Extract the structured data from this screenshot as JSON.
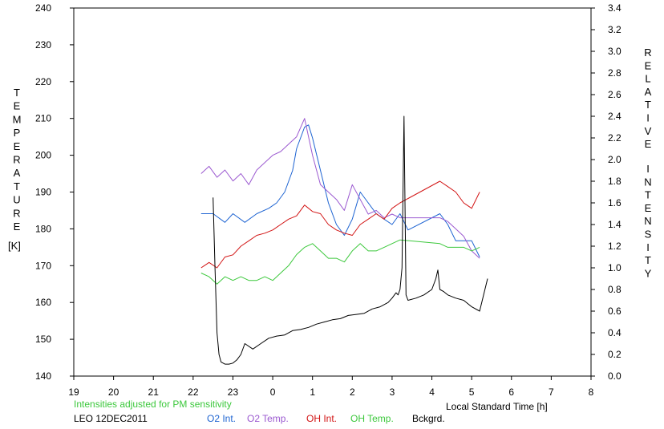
{
  "chart_data": {
    "type": "line",
    "x_axis": {
      "label": "Local Standard Time [h]",
      "range": [
        19,
        32
      ],
      "tick_labels": [
        "19",
        "20",
        "21",
        "22",
        "23",
        "0",
        "1",
        "2",
        "3",
        "4",
        "5",
        "6",
        "7",
        "8"
      ]
    },
    "y_left": {
      "label_letters": [
        "T",
        "E",
        "M",
        "P",
        "E",
        "R",
        "A",
        "T",
        "U",
        "R",
        "E"
      ],
      "unit": "[K]",
      "range": [
        140,
        240
      ],
      "ticks": [
        "140",
        "150",
        "160",
        "170",
        "180",
        "190",
        "200",
        "210",
        "220",
        "230",
        "240"
      ]
    },
    "y_right": {
      "label_word1": [
        "R",
        "E",
        "L",
        "A",
        "T",
        "I",
        "V",
        "E"
      ],
      "label_word2": [
        "I",
        "N",
        "T",
        "E",
        "N",
        "S",
        "I",
        "T",
        "Y"
      ],
      "range": [
        0.0,
        3.4
      ],
      "ticks": [
        "0.0",
        "0.2",
        "0.4",
        "0.6",
        "0.8",
        "1.0",
        "1.2",
        "1.4",
        "1.6",
        "1.8",
        "2.0",
        "2.2",
        "2.4",
        "2.6",
        "2.8",
        "3.0",
        "3.2",
        "3.4"
      ]
    },
    "note": "Intensities adjusted for PM sensitivity",
    "station": "LEO 12DEC2011",
    "series": [
      {
        "name": "O2 Int.",
        "axis": "right",
        "color": "#1e64d2",
        "x": [
          22.2,
          22.5,
          22.8,
          23.0,
          23.3,
          23.6,
          23.9,
          24.1,
          24.3,
          24.5,
          24.6,
          24.8,
          24.9,
          25.0,
          25.2,
          25.4,
          25.6,
          25.8,
          26.0,
          26.2,
          26.4,
          26.6,
          26.8,
          27.0,
          27.2,
          27.4,
          28.2,
          28.4,
          28.6,
          28.8,
          29.0,
          29.2
        ],
        "y": [
          1.5,
          1.5,
          1.42,
          1.5,
          1.42,
          1.5,
          1.55,
          1.6,
          1.7,
          1.9,
          2.1,
          2.3,
          2.32,
          2.2,
          1.9,
          1.6,
          1.4,
          1.3,
          1.45,
          1.7,
          1.6,
          1.5,
          1.45,
          1.4,
          1.5,
          1.35,
          1.5,
          1.4,
          1.25,
          1.25,
          1.25,
          1.1
        ]
      },
      {
        "name": "O2 Temp.",
        "axis": "left",
        "color": "#9b59d0",
        "x": [
          22.2,
          22.4,
          22.6,
          22.8,
          23.0,
          23.2,
          23.4,
          23.6,
          23.8,
          24.0,
          24.2,
          24.4,
          24.6,
          24.8,
          25.0,
          25.2,
          25.4,
          25.6,
          25.8,
          26.0,
          26.2,
          26.4,
          26.6,
          26.8,
          27.0,
          27.2,
          28.2,
          28.4,
          28.6,
          28.8,
          29.0,
          29.2
        ],
        "y": [
          195,
          197,
          194,
          196,
          193,
          195,
          192,
          196,
          198,
          200,
          201,
          203,
          205,
          210,
          200,
          192,
          190,
          188,
          185,
          192,
          188,
          184,
          185,
          183,
          184,
          183,
          183,
          182,
          180,
          178,
          174,
          172
        ]
      },
      {
        "name": "OH Int.",
        "axis": "right",
        "color": "#d21414",
        "x": [
          22.2,
          22.4,
          22.6,
          22.8,
          23.0,
          23.2,
          23.4,
          23.6,
          23.8,
          24.0,
          24.2,
          24.4,
          24.6,
          24.8,
          25.0,
          25.2,
          25.4,
          25.6,
          25.8,
          26.0,
          26.2,
          26.4,
          26.6,
          26.8,
          27.0,
          27.2,
          28.2,
          28.4,
          28.6,
          28.8,
          29.0,
          29.2
        ],
        "y": [
          1.0,
          1.05,
          1.0,
          1.1,
          1.12,
          1.2,
          1.25,
          1.3,
          1.32,
          1.35,
          1.4,
          1.45,
          1.48,
          1.58,
          1.52,
          1.5,
          1.4,
          1.35,
          1.32,
          1.3,
          1.4,
          1.45,
          1.5,
          1.45,
          1.55,
          1.6,
          1.8,
          1.75,
          1.7,
          1.6,
          1.55,
          1.7
        ]
      },
      {
        "name": "OH Temp.",
        "axis": "left",
        "color": "#3cc83c",
        "x": [
          22.2,
          22.4,
          22.6,
          22.8,
          23.0,
          23.2,
          23.4,
          23.6,
          23.8,
          24.0,
          24.2,
          24.4,
          24.6,
          24.8,
          25.0,
          25.2,
          25.4,
          25.6,
          25.8,
          26.0,
          26.2,
          26.4,
          26.6,
          26.8,
          27.0,
          27.2,
          28.2,
          28.4,
          28.6,
          28.8,
          29.0,
          29.2
        ],
        "y": [
          168,
          167,
          165,
          167,
          166,
          167,
          166,
          166,
          167,
          166,
          168,
          170,
          173,
          175,
          176,
          174,
          172,
          172,
          171,
          174,
          176,
          174,
          174,
          175,
          176,
          177,
          176,
          175,
          175,
          175,
          174,
          175
        ]
      },
      {
        "name": "Bckgrd.",
        "axis": "right",
        "color": "#000000",
        "x": [
          22.5,
          22.55,
          22.6,
          22.65,
          22.7,
          22.8,
          22.9,
          23.0,
          23.1,
          23.2,
          23.3,
          23.5,
          23.7,
          23.9,
          24.1,
          24.3,
          24.5,
          24.7,
          24.9,
          25.1,
          25.3,
          25.5,
          25.7,
          25.9,
          26.1,
          26.3,
          26.5,
          26.7,
          26.9,
          27.0,
          27.1,
          27.15,
          27.2,
          27.25,
          27.3,
          27.35,
          27.4,
          27.6,
          27.8,
          28.0,
          28.1,
          28.15,
          28.2,
          28.3,
          28.4,
          28.6,
          28.8,
          29.0,
          29.2,
          29.4
        ],
        "y": [
          1.65,
          1.0,
          0.4,
          0.2,
          0.13,
          0.11,
          0.11,
          0.12,
          0.15,
          0.2,
          0.3,
          0.25,
          0.3,
          0.35,
          0.37,
          0.38,
          0.42,
          0.43,
          0.45,
          0.48,
          0.5,
          0.52,
          0.53,
          0.56,
          0.57,
          0.58,
          0.62,
          0.64,
          0.68,
          0.72,
          0.77,
          0.75,
          0.8,
          1.0,
          2.4,
          0.75,
          0.7,
          0.72,
          0.75,
          0.8,
          0.9,
          0.98,
          0.8,
          0.78,
          0.75,
          0.72,
          0.7,
          0.64,
          0.6,
          0.9
        ]
      }
    ]
  }
}
